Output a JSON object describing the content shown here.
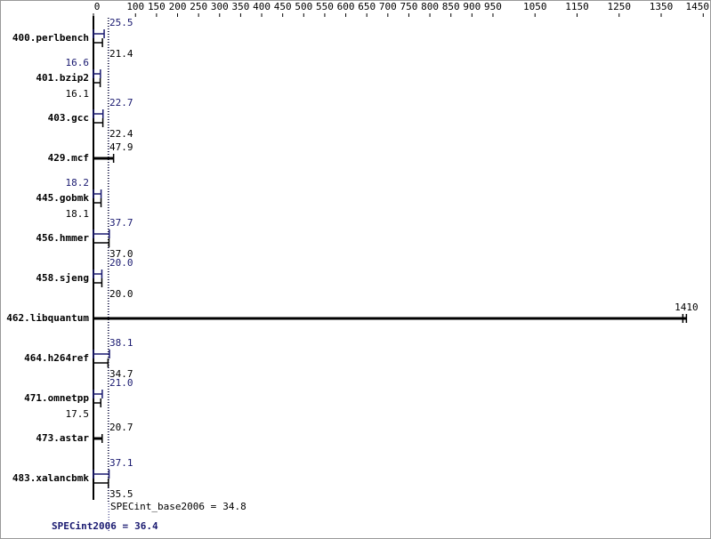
{
  "chart_data": {
    "type": "bar",
    "orientation": "horizontal",
    "categories": [
      "400.perlbench",
      "401.bzip2",
      "403.gcc",
      "429.mcf",
      "445.gobmk",
      "456.hmmer",
      "458.sjeng",
      "462.libquantum",
      "464.h264ref",
      "471.omnetpp",
      "473.astar",
      "483.xalancbmk"
    ],
    "series": [
      {
        "color": "#191970",
        "values": [
          25.5,
          16.6,
          22.7,
          null,
          18.2,
          37.7,
          20.0,
          null,
          38.1,
          21.0,
          null,
          37.1
        ],
        "value_labels": [
          "25.5",
          "16.6",
          "22.7",
          null,
          "18.2",
          "37.7",
          "20.0",
          null,
          "38.1",
          "21.0",
          null,
          "37.1"
        ]
      },
      {
        "color": "#000000",
        "values": [
          21.4,
          16.1,
          22.4,
          47.9,
          18.1,
          37.0,
          20.0,
          1410,
          34.7,
          17.5,
          20.7,
          35.5
        ],
        "value_labels": [
          "21.4",
          "16.1",
          "22.4",
          "47.9",
          "18.1",
          "37.0",
          "20.0",
          "1410",
          "34.7",
          "17.5",
          "20.7",
          "35.5"
        ]
      }
    ],
    "xlim": [
      0,
      1460
    ],
    "xticks": [
      0,
      100,
      150,
      200,
      250,
      300,
      350,
      400,
      450,
      500,
      550,
      600,
      650,
      700,
      750,
      800,
      850,
      900,
      950,
      1050,
      1150,
      1250,
      1350,
      1450
    ],
    "metrics": [
      {
        "label": "SPECint_base2006 =",
        "value": 34.8,
        "color": "#000000"
      },
      {
        "label": "SPECint2006 =",
        "value": 36.4,
        "color": "#191970"
      }
    ]
  }
}
